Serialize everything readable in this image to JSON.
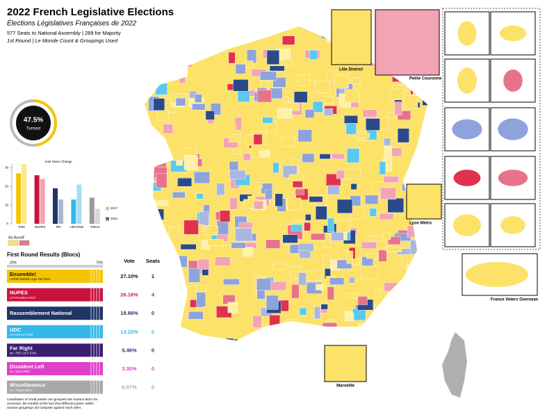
{
  "header": {
    "title": "2022 French Legislative Elections",
    "subtitle": "Élections Législatives Françaises de 2022",
    "line1": "577 Seats to National Assembly | 289 for Majority",
    "line2": "1st Round | Le Monde Count & Groupings Used"
  },
  "turnout": {
    "value": 47.5,
    "label": "47.5%",
    "caption": "Turnout"
  },
  "chart_data": {
    "type": "bar",
    "title": "Vote Share Change",
    "categories": [
      "ENS",
      "NUPES",
      "RN",
      "UDC/DvD",
      "Others"
    ],
    "series": [
      {
        "name": "2022",
        "values": [
          27,
          26,
          19,
          13,
          14
        ],
        "colors": [
          "#f5c400",
          "#c8143c",
          "#1f3566",
          "#34b8ea",
          "#9a9a9a"
        ]
      },
      {
        "name": "2017",
        "values": [
          32,
          24,
          13,
          21,
          8
        ],
        "colors": [
          "#fbe788",
          "#f2a3b4",
          "#a9b6d4",
          "#a8dcf5",
          "#d6d6d6"
        ]
      }
    ],
    "ylim": [
      0,
      32
    ],
    "yticks": [
      0,
      10,
      20,
      30
    ]
  },
  "no_runoff": "No Runoff",
  "results": {
    "title": "First Round Results (Blocs)",
    "scale": [
      "20%",
      "70%"
    ],
    "headers": [
      "Vote",
      "Seats"
    ],
    "rows": [
      {
        "name": "Ensemble!",
        "sub": "LREM-MoDem-Agir-Hor-DVC",
        "vote": "27.10%",
        "seats": "1",
        "color": "#f5c400",
        "text_color": "#111111"
      },
      {
        "name": "NUPES",
        "sub": "LFI-PS-EELV-PCF",
        "vote": "26.16%",
        "seats": "4",
        "color": "#c8143c",
        "text_color": "#d0203a"
      },
      {
        "name": "Rassemblement National",
        "sub": null,
        "vote": "18.86%",
        "seats": "0",
        "color": "#1f3566",
        "text_color": "#1f3566"
      },
      {
        "name": "UDC",
        "sub": "LR-UDI-LC-DVD",
        "vote": "13.22%",
        "seats": "0",
        "color": "#34b8ea",
        "text_color": "#34b8ea"
      },
      {
        "name": "Far Right",
        "sub": "inc. REC DLF-EXD",
        "vote": "5.46%",
        "seats": "0",
        "color": "#3a1f70",
        "text_color": "#3a1f70"
      },
      {
        "name": "Dissident Left",
        "sub": "inc. DVG PRG",
        "vote": "3.30%",
        "seats": "0",
        "color": "#e040c8",
        "text_color": "#e040c8"
      },
      {
        "name": "Miscellaneous",
        "sub": "inc. Regionalists",
        "vote": "6.07%",
        "seats": "0",
        "color": "#a8a8a8",
        "text_color": "#a8a8a8"
      }
    ],
    "note": "Candidates of small parties are grouped into nuance blocs for concision. Be mindful of the fact that different parties within nuance groupings did compete against each other."
  },
  "map_labels": {
    "lille": "Lille District",
    "petite_couronne": "Petite Couronne",
    "lyon": "Lyon Metro",
    "marseille": "Marseille",
    "overseas": "France Voters Overseas"
  }
}
